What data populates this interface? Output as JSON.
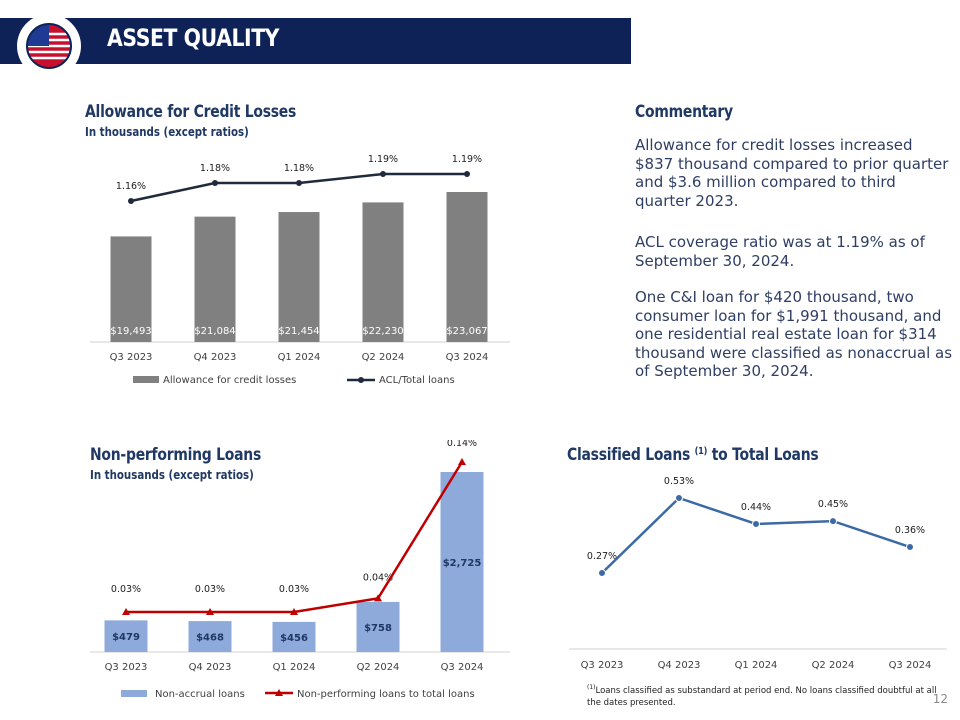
{
  "header": {
    "title": "ASSET QUALITY"
  },
  "colors": {
    "navy": "#0e2258",
    "gray_bar": "#808080",
    "blue_bar": "#8eaadb",
    "red_line": "#c00000",
    "blue_line": "#3d6aa6",
    "dark_line": "#1f2a3c"
  },
  "acl_section": {
    "title": "Allowance for Credit Losses",
    "subtitle": "In thousands (except ratios)"
  },
  "npl_section": {
    "title": "Non-performing Loans",
    "subtitle": "In thousands (except ratios)"
  },
  "classified_section": {
    "title_main": "Classified Loans ",
    "title_sup": "(1)",
    "title_end": " to Total Loans"
  },
  "commentary": {
    "title": "Commentary",
    "p1": "Allowance for credit losses increased $837 thousand compared to prior quarter and $3.6 million compared to third quarter 2023.",
    "p2": "ACL coverage ratio was at 1.19% as of September 30, 2024.",
    "p3": "One C&I loan for $420 thousand, two consumer loan for $1,991 thousand, and one residential real estate loan for $314 thousand were classified as nonaccrual as of September 30, 2024."
  },
  "footnote": {
    "sup": "(1)",
    "text": "Loans classified as substandard at period end. No loans classified doubtful at all the dates presented."
  },
  "page_number": "12",
  "chart_data": [
    {
      "type": "bar",
      "title": "Allowance for Credit Losses",
      "categories": [
        "Q3 2023",
        "Q4 2023",
        "Q1 2024",
        "Q2 2024",
        "Q3 2024"
      ],
      "series": [
        {
          "name": "Allowance for credit losses",
          "values": [
            19493,
            21084,
            21454,
            22230,
            23067
          ],
          "labels": [
            "$19,493",
            "$21,084",
            "$21,454",
            "$22,230",
            "$23,067"
          ]
        },
        {
          "name": "ACL/Total loans",
          "type": "line",
          "values": [
            1.16,
            1.18,
            1.18,
            1.19,
            1.19
          ],
          "labels": [
            "1.16%",
            "1.18%",
            "1.18%",
            "1.19%",
            "1.19%"
          ]
        }
      ],
      "legend": "bottom"
    },
    {
      "type": "bar",
      "title": "Non-performing Loans",
      "categories": [
        "Q3 2023",
        "Q4 2023",
        "Q1 2024",
        "Q2 2024",
        "Q3 2024"
      ],
      "series": [
        {
          "name": "Non-accrual loans",
          "values": [
            479,
            468,
            456,
            758,
            2725
          ],
          "labels": [
            "$479",
            "$468",
            "$456",
            "$758",
            "$2,725"
          ]
        },
        {
          "name": "Non-performing loans to total loans",
          "type": "line",
          "values": [
            0.03,
            0.03,
            0.03,
            0.04,
            0.14
          ],
          "labels": [
            "0.03%",
            "0.03%",
            "0.03%",
            "0.04%",
            "0.14%"
          ]
        }
      ],
      "legend": "bottom"
    },
    {
      "type": "line",
      "title": "Classified Loans (1) to Total Loans",
      "categories": [
        "Q3 2023",
        "Q4 2023",
        "Q1 2024",
        "Q2 2024",
        "Q3 2024"
      ],
      "series": [
        {
          "name": "Classified loans to total loans",
          "values": [
            0.27,
            0.53,
            0.44,
            0.45,
            0.36
          ],
          "labels": [
            "0.27%",
            "0.53%",
            "0.44%",
            "0.45%",
            "0.36%"
          ]
        }
      ]
    }
  ]
}
